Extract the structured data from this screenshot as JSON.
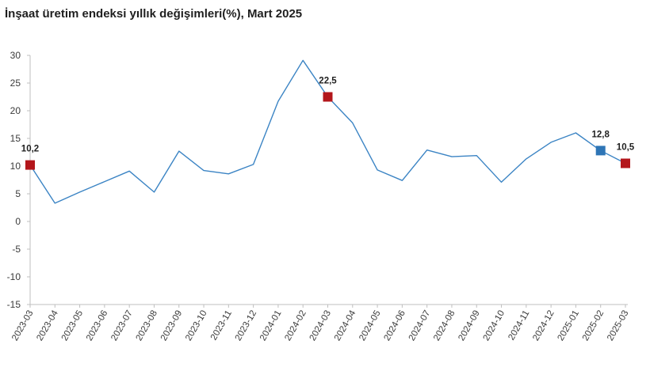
{
  "chart_data": {
    "type": "line",
    "title": "İnşaat üretim endeksi yıllık değişimleri(%), Mart 2025",
    "xlabel": "",
    "ylabel": "",
    "ylim": [
      -15,
      30
    ],
    "yticks": [
      30,
      25,
      20,
      15,
      10,
      5,
      0,
      -5,
      -10,
      -15
    ],
    "ytick_labels": [
      "30",
      "25",
      "20",
      "15",
      "10",
      "5",
      "0",
      "-5",
      "-10",
      "-15"
    ],
    "grid": false,
    "legend": "none",
    "x": [
      "2023-03",
      "2023-04",
      "2023-05",
      "2023-06",
      "2023-07",
      "2023-08",
      "2023-09",
      "2023-10",
      "2023-11",
      "2023-12",
      "2024-01",
      "2024-02",
      "2024-03",
      "2024-04",
      "2024-05",
      "2024-06",
      "2024-07",
      "2024-08",
      "2024-09",
      "2024-10",
      "2024-11",
      "2024-12",
      "2025-01",
      "2025-02",
      "2025-03"
    ],
    "series": [
      {
        "values": [
          10.2,
          3.3,
          5.3,
          7.2,
          9.1,
          5.3,
          12.7,
          9.2,
          8.6,
          10.3,
          21.7,
          29.1,
          22.5,
          17.8,
          9.3,
          7.4,
          12.9,
          11.7,
          11.9,
          7.1,
          11.3,
          14.3,
          16.0,
          12.8,
          10.5
        ],
        "color": "#3b84c4"
      }
    ],
    "highlighted_points": [
      {
        "x": "2023-03",
        "value": 10.2,
        "label": "10,2",
        "color": "#b3161b"
      },
      {
        "x": "2024-03",
        "value": 22.5,
        "label": "22,5",
        "color": "#b3161b"
      },
      {
        "x": "2025-02",
        "value": 12.8,
        "label": "12,8",
        "color": "#2e75b6"
      },
      {
        "x": "2025-03",
        "value": 10.5,
        "label": "10,5",
        "color": "#b3161b"
      }
    ],
    "axis_color": "#bfbfbf"
  }
}
